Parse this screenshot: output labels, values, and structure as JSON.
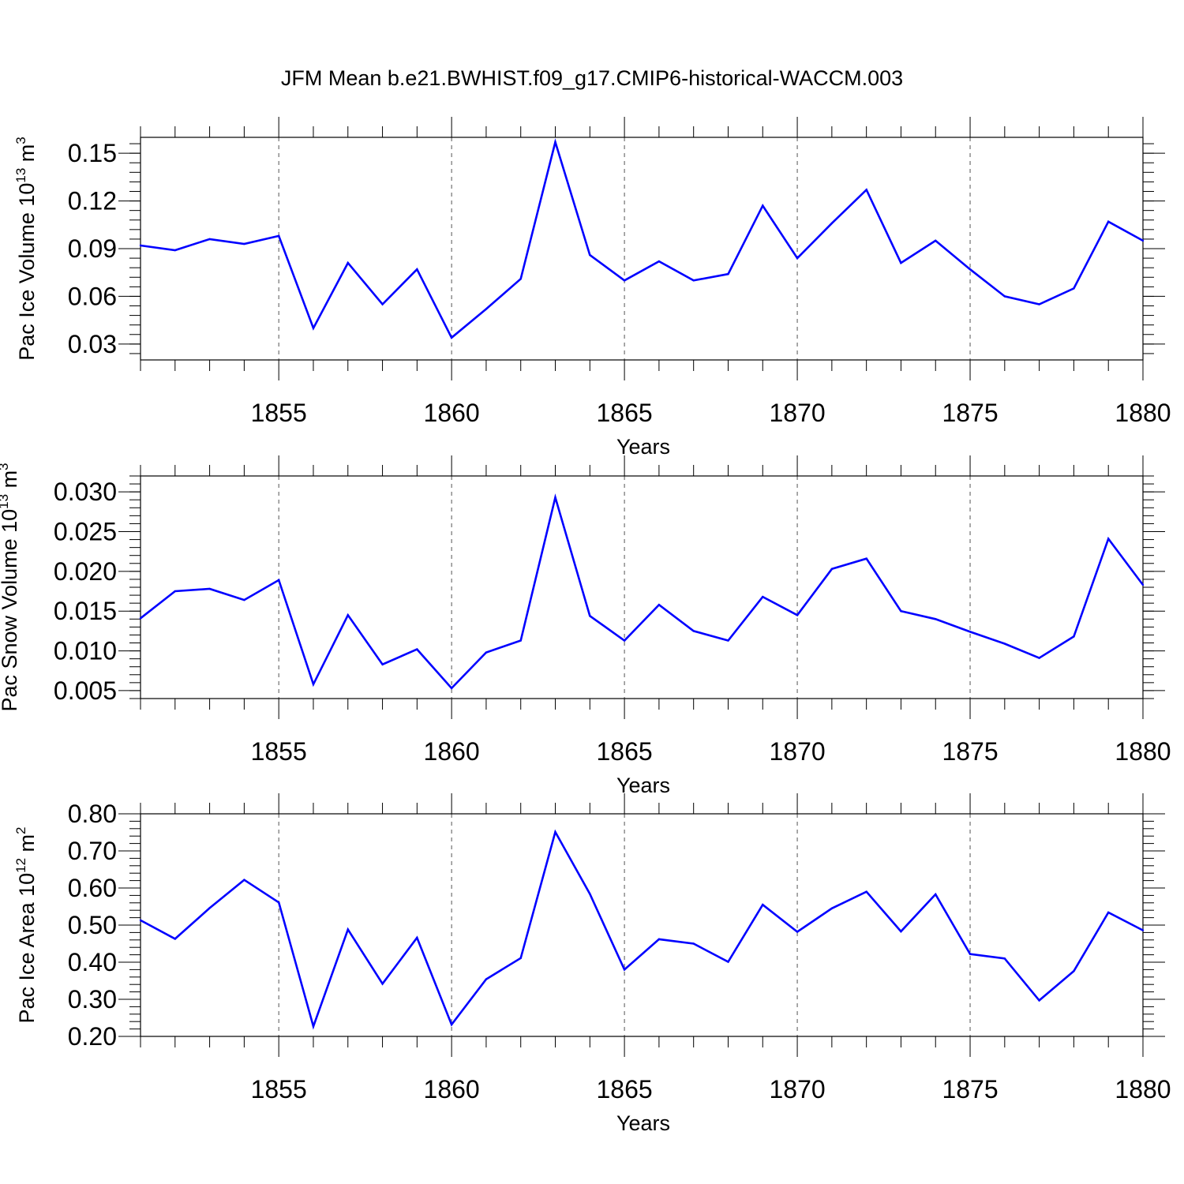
{
  "title": "JFM Mean b.e21.BWHIST.f09_g17.CMIP6-historical-WACCM.003",
  "colors": {
    "line": "#0000ff",
    "axis": "#000000",
    "grid": "#555555"
  },
  "chart_data": [
    {
      "type": "line",
      "ylabel_main": "Pac Ice Volume 10",
      "ylabel_exp": "13",
      "ylabel_unit": "m",
      "ylabel_unit_exp": "3",
      "xlabel": "Years",
      "xlim": [
        1851,
        1880
      ],
      "ylim": [
        0.02,
        0.16
      ],
      "yticks": [
        0.03,
        0.06,
        0.09,
        0.12,
        0.15
      ],
      "ytick_labels": [
        "0.03",
        "0.06",
        "0.09",
        "0.12",
        "0.15"
      ],
      "xticks": [
        1855,
        1860,
        1865,
        1870,
        1875,
        1880
      ],
      "xtick_labels": [
        "1855",
        "1860",
        "1865",
        "1870",
        "1875",
        "1880"
      ],
      "grid": "vertical dashed at major x ticks",
      "x": [
        1851,
        1852,
        1853,
        1854,
        1855,
        1856,
        1857,
        1858,
        1859,
        1860,
        1861,
        1862,
        1863,
        1864,
        1865,
        1866,
        1867,
        1868,
        1869,
        1870,
        1871,
        1872,
        1873,
        1874,
        1875,
        1876,
        1877,
        1878,
        1879,
        1880
      ],
      "values": [
        0.092,
        0.089,
        0.096,
        0.093,
        0.098,
        0.04,
        0.081,
        0.055,
        0.077,
        0.034,
        0.052,
        0.071,
        0.157,
        0.086,
        0.07,
        0.082,
        0.07,
        0.074,
        0.117,
        0.084,
        0.106,
        0.127,
        0.081,
        0.095,
        0.077,
        0.06,
        0.055,
        0.065,
        0.107,
        0.095
      ]
    },
    {
      "type": "line",
      "ylabel_main": "Pac Snow Volume 10",
      "ylabel_exp": "13",
      "ylabel_unit": "m",
      "ylabel_unit_exp": "3",
      "xlabel": "Years",
      "xlim": [
        1851,
        1880
      ],
      "ylim": [
        0.004,
        0.032
      ],
      "yticks": [
        0.005,
        0.01,
        0.015,
        0.02,
        0.025,
        0.03
      ],
      "ytick_labels": [
        "0.005",
        "0.010",
        "0.015",
        "0.020",
        "0.025",
        "0.030"
      ],
      "xticks": [
        1855,
        1860,
        1865,
        1870,
        1875,
        1880
      ],
      "xtick_labels": [
        "1855",
        "1860",
        "1865",
        "1870",
        "1875",
        "1880"
      ],
      "grid": "vertical dashed at major x ticks",
      "x": [
        1851,
        1852,
        1853,
        1854,
        1855,
        1856,
        1857,
        1858,
        1859,
        1860,
        1861,
        1862,
        1863,
        1864,
        1865,
        1866,
        1867,
        1868,
        1869,
        1870,
        1871,
        1872,
        1873,
        1874,
        1875,
        1876,
        1877,
        1878,
        1879,
        1880
      ],
      "values": [
        0.0141,
        0.0175,
        0.0178,
        0.0164,
        0.0189,
        0.0058,
        0.0145,
        0.0083,
        0.0102,
        0.0053,
        0.0098,
        0.0113,
        0.0293,
        0.0144,
        0.0113,
        0.0158,
        0.0125,
        0.0113,
        0.0168,
        0.0145,
        0.0203,
        0.0216,
        0.015,
        0.014,
        0.0124,
        0.0109,
        0.0091,
        0.0118,
        0.0241,
        0.0183
      ]
    },
    {
      "type": "line",
      "ylabel_main": "Pac Ice Area 10",
      "ylabel_exp": "12",
      "ylabel_unit": "m",
      "ylabel_unit_exp": "2",
      "xlabel": "Years",
      "xlim": [
        1851,
        1880
      ],
      "ylim": [
        0.2,
        0.8
      ],
      "yticks": [
        0.2,
        0.3,
        0.4,
        0.5,
        0.6,
        0.7,
        0.8
      ],
      "ytick_labels": [
        "0.20",
        "0.30",
        "0.40",
        "0.50",
        "0.60",
        "0.70",
        "0.80"
      ],
      "xticks": [
        1855,
        1860,
        1865,
        1870,
        1875,
        1880
      ],
      "xtick_labels": [
        "1855",
        "1860",
        "1865",
        "1870",
        "1875",
        "1880"
      ],
      "grid": "vertical dashed at major x ticks",
      "x": [
        1851,
        1852,
        1853,
        1854,
        1855,
        1856,
        1857,
        1858,
        1859,
        1860,
        1861,
        1862,
        1863,
        1864,
        1865,
        1866,
        1867,
        1868,
        1869,
        1870,
        1871,
        1872,
        1873,
        1874,
        1875,
        1876,
        1877,
        1878,
        1879,
        1880
      ],
      "values": [
        0.513,
        0.463,
        0.546,
        0.622,
        0.561,
        0.227,
        0.488,
        0.342,
        0.466,
        0.232,
        0.354,
        0.411,
        0.751,
        0.584,
        0.38,
        0.462,
        0.45,
        0.401,
        0.555,
        0.482,
        0.545,
        0.59,
        0.483,
        0.583,
        0.422,
        0.41,
        0.297,
        0.376,
        0.534,
        0.486
      ]
    }
  ]
}
